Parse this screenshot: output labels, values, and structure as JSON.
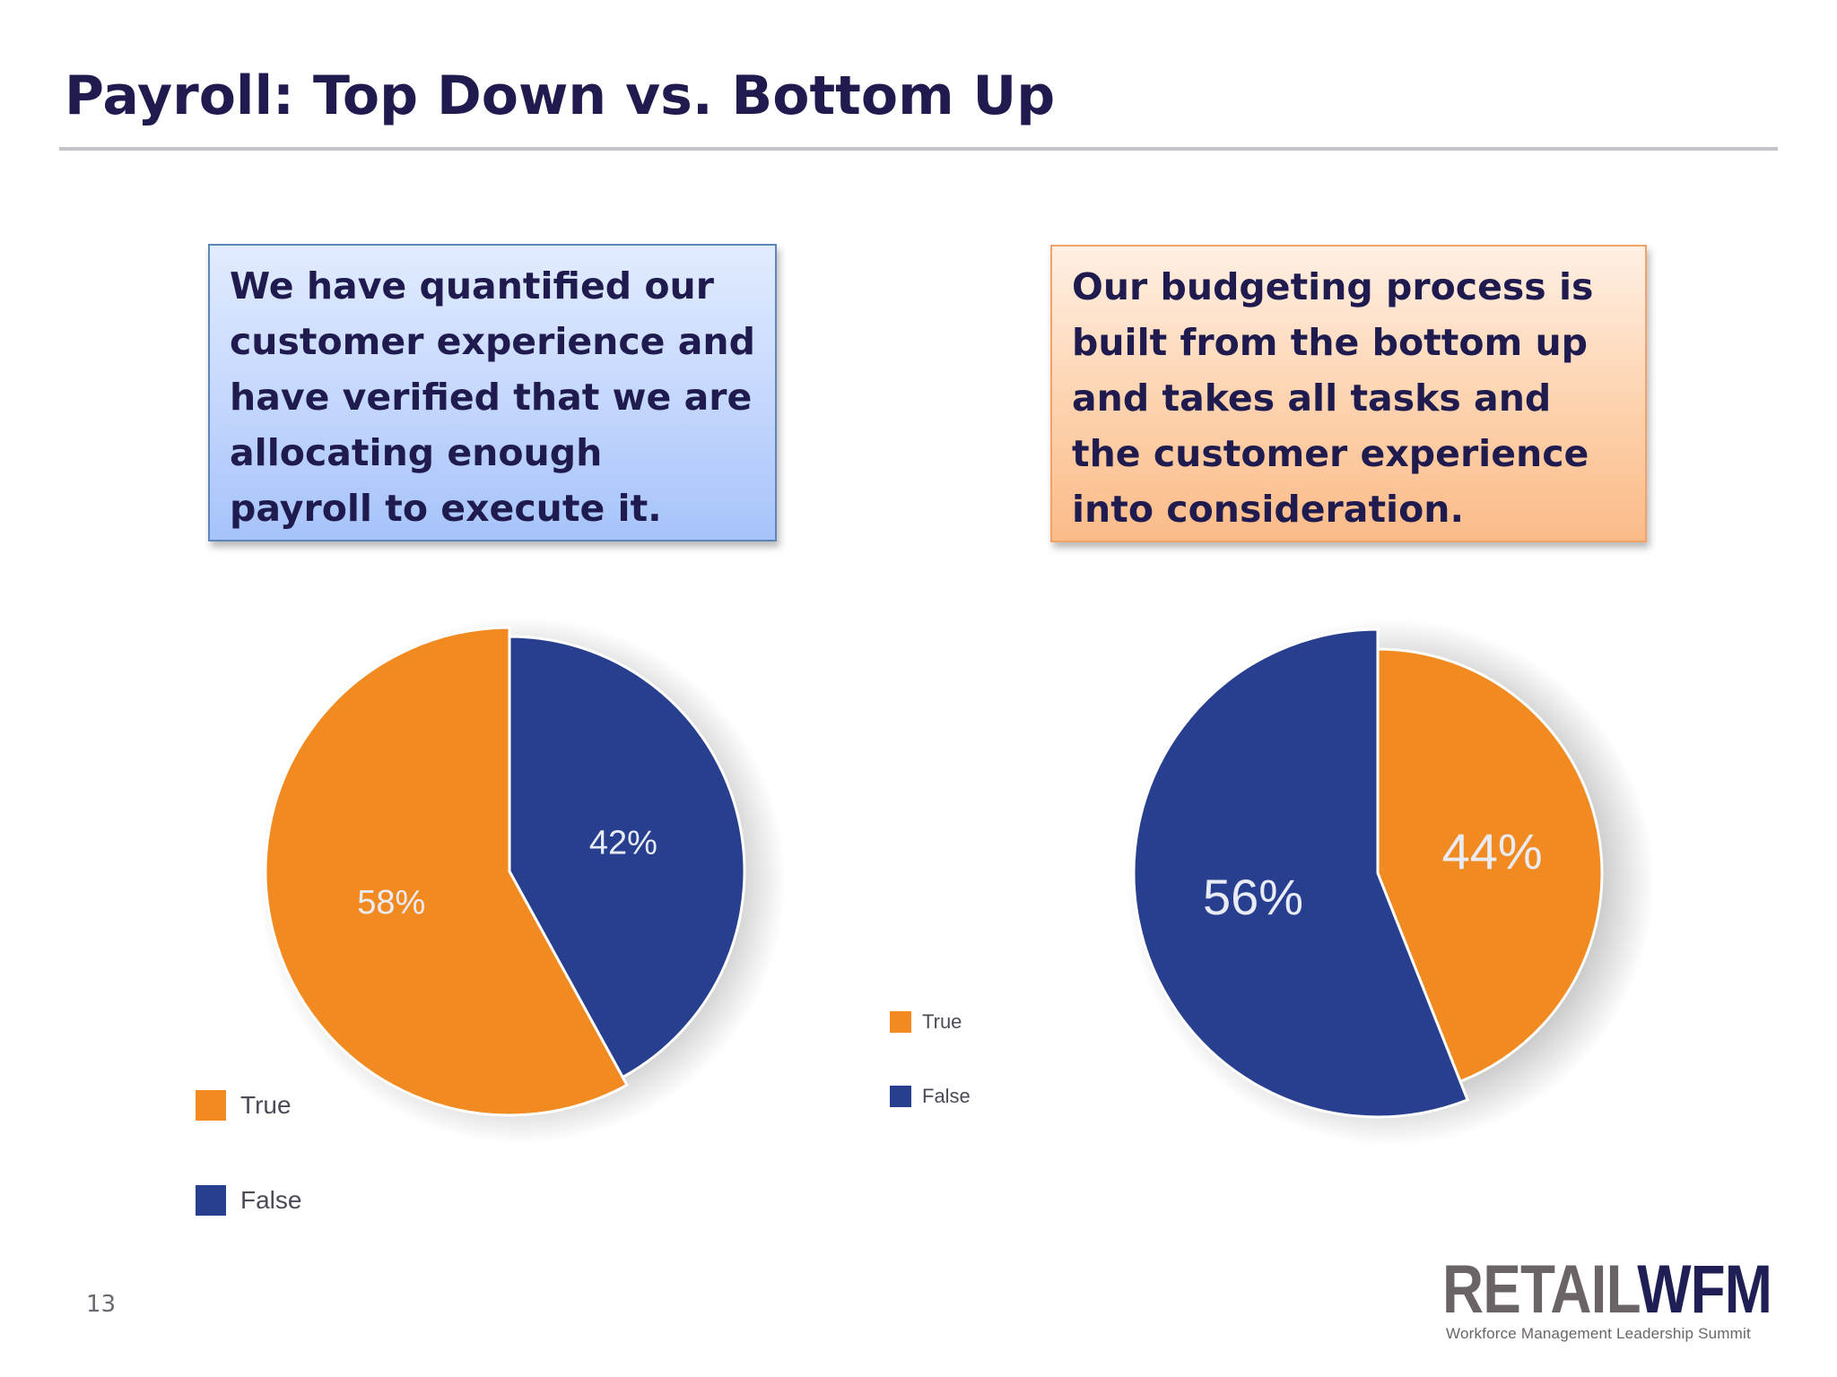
{
  "slide": {
    "title": "Payroll: Top Down vs. Bottom Up",
    "page_number": "13"
  },
  "callouts": {
    "left": "We have quantified our customer experience and have verified that we are allocating enough payroll to execute it.",
    "right": "Our budgeting process is built from the bottom up and takes all tasks and the customer experience into consideration."
  },
  "colors": {
    "true": "#f28a22",
    "false": "#283f8f"
  },
  "logo": {
    "word_part1": "RETAIL",
    "word_part2": "WFM",
    "subtitle": "Workforce Management Leadership Summit"
  },
  "chart_data": [
    {
      "type": "pie",
      "labels": [
        "True",
        "False"
      ],
      "values": [
        58,
        42
      ],
      "data_labels": [
        "58%",
        "42%"
      ],
      "legend": [
        "True",
        "False"
      ],
      "legend_placement": "bottom-left"
    },
    {
      "type": "pie",
      "labels": [
        "True",
        "False"
      ],
      "values": [
        44,
        56
      ],
      "data_labels": [
        "44%",
        "56%"
      ],
      "legend": [
        "True",
        "False"
      ],
      "legend_placement": "left"
    }
  ]
}
